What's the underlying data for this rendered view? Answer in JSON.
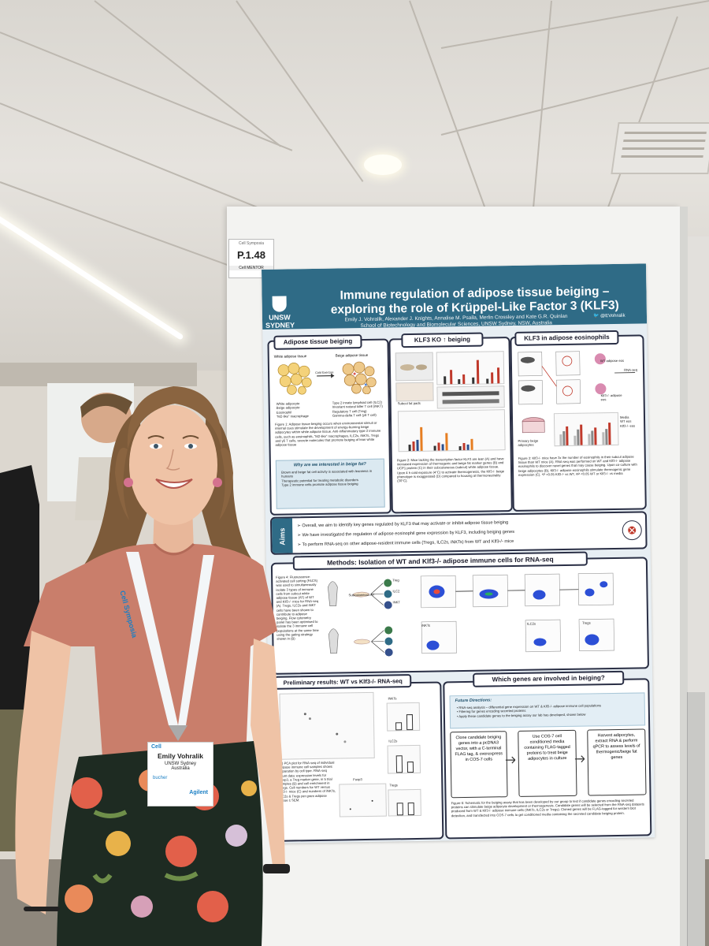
{
  "scene": {
    "poster_number": "P.1.48",
    "poster_tag_sponsor": "Cell MENTOR"
  },
  "poster": {
    "institution_logo_text": "UNSW SYDNEY",
    "title_line1": "Immune regulation of adipose tissue beiging –",
    "title_line2": "exploring the role of Krüppel-Like Factor 3 (KLF3)",
    "authors": "Emily J. Vohralik, Alexander J. Knights, Annalise M. Psaila, Merlin Crossley and Kate G.R. Quinlan",
    "affiliation": "School of Biotechnology and Biomolecular Sciences, UNSW Sydney, NSW, Australia",
    "twitter": "@EVohralik",
    "panel1": {
      "title": "Adipose tissue beiging",
      "label_white": "White adipose tissue",
      "label_beige": "Beige adipose tissue",
      "arrow_label": "Cold Exercise",
      "legend": [
        "White adipocyte",
        "Beige adipocyte",
        "Eosinophil",
        "\"M2-like\" macrophage",
        "Type 2 innate lymphoid cell (ILC2)",
        "Invariant natural killer T cell (iNKT)",
        "Regulatory T cell (Treg)",
        "Gamma-delta T cell (γδ T cell)"
      ],
      "caption": "Figure 1: Adipose tissue beiging occurs when environmental stimuli or internal cues stimulate the development of energy-burning beige adipocytes within white adipose tissue. Anti-inflammatory type 2 immune cells, such as eosinophils, \"M2-like\" macrophages, ILC2s, iNKTs, Tregs and γδ T cells, secrete molecules that promote beiging of lean white adipose tissue",
      "why_title": "Why are we interested in beige fat?",
      "why_items": [
        "Brown and beige fat cell activity is associated with leanness in humans",
        "Therapeutic potential for treating metabolic disorders",
        "Type 2 immune cells promote adipose tissue beiging"
      ]
    },
    "panel2": {
      "title": "KLF3 KO ↑ beiging",
      "caption": "Figure 2: Mice lacking the transcription factor KLF3 are lean (A) and have increased expression of thermogenic and beige fat marker genes (B) and UCP1 protein (C) in their subcutaneous (subcut) white adipose tissue. Upon 4 h cold exposure (4°C) to activate thermogenesis, the Klf3-/- beige phenotype is exaggerated (D) compared to housing at thermoneutrality (30°C).",
      "subcut_label": "Subcut fat pads"
    },
    "panel3": {
      "title": "KLF3 in adipose eosinophils",
      "labels": [
        "WT adipose eos",
        "Klf3-/- adipose eos",
        "RNA-seq",
        "Primary beige adipocytes",
        "Media",
        "WT eos",
        "Klf3-/- eos"
      ],
      "caption": "Figure 3: Klf3-/- mice have 3x the number of eosinophils in their subcut adipose tissue than WT mice (A). RNA-seq was performed on WT and Klf3-/- adipose eosinophils to discover novel genes that may cause beiging. Upon co-culture with beige adipocytes (B), Klf3-/- adipose eosinophils stimulate thermogenic gene expression (C). *P <0.05 Klf3-/- vs WT, #P <0.05 WT or Klf3-/- vs media"
    },
    "aims": {
      "label": "Aims",
      "items": [
        "Overall, we aim to identify key genes regulated by KLF3 that may activate or inhibit adipose tissue beiging",
        "We have investigated the regulation of adipose eosinophil gene expression by KLF3, including beiging genes",
        "To perform RNA-seq on other adipose-resident immune cells (Tregs, ILC2s, iNKTs) from WT and Klf3-/- mice"
      ]
    },
    "methods": {
      "title": "Methods: Isolation of WT and Klf3-/- adipose immune cells for RNA-seq",
      "caption": "Figure 4: Fluorescence-activated cell sorting (FACS) was used to simultaneously isolate 3 types of immune cells from subcut white adipose tissue (AT) of WT and Klf3-/- mice for RNA-seq (A). Tregs, ILC2s and iNKT cells have been shown to contribute to adipose beiging. Flow cytometry panel has been optimised to isolate the 3 immune cell populations at the same time using the gating strategy shown in (B)",
      "cell_types": [
        "Treg",
        "ILC2",
        "iNKT"
      ],
      "tissue_label": "Subcutaneous AT",
      "gate_labels": [
        "Tregs",
        "ILC2s",
        "iNKTs"
      ]
    },
    "prelim": {
      "title": "Preliminary results: WT vs Klf3-/- RNA-seq",
      "gene_labels": [
        "iNKTs",
        "ILC2s",
        "Foxp3",
        "Tregs"
      ],
      "caption": "(A) PCA plot for RNA-seq of individual adipose immune cell samples shows separation by cell type. RNA-seq count data: expression levels for Foxp3, a Treg marker gene, in 5 trial samples (B) and cell enrichment in Tregs. Cell numbers for WT versus Klf3-/- mice (C) and numbers of iNKTs, ILC2s & Tregs per gram adipose tissue ± SEM."
    },
    "genes": {
      "title": "Which genes are involved in beiging?",
      "future_title": "Future Directions:",
      "future_items": [
        "RNA-seq analysis – differential gene expression on WT & Klf3-/- adipose immune cell populations",
        "Filtering for genes encoding secreted proteins",
        "Apply these candidate genes to the beiging assay our lab has developed, shown below"
      ],
      "step1": "Clone candidate beiging genes into a pcDNA3 vector, with a C-terminal FLAG tag, & overexpress in COS-7 cells",
      "step2": "Use COS-7 cell conditioned media containing FLAG-tagged proteins to treat beige adipocytes in culture",
      "step3": "Harvest adipocytes, extract RNA & perform qPCR to assess levels of thermogenic/beige fat genes",
      "caption": "Figure 6: Schematic for the beiging assay that has been developed by our group to test if candidate genes encoding secreted proteins can stimulate beige adipocyte development or thermogenesis. Candidate genes will be selected from the RNA-seq datasets produced from WT & Klf3-/- adipose immune cells (iNKTs, ILC2s or Tregs). Cloned genes will be FLAG-tagged for western blot detection, and transfected into COS-7 cells to get conditioned media containing the secreted candidate beiging protein."
    }
  },
  "lanyard_text": "Cell Symposia",
  "badge": {
    "header": "Cell",
    "name": "Emily Vohralik",
    "org": "UNSW Sydney",
    "country": "Australia",
    "sponsor1": "bucher",
    "sponsor2": "Agilent"
  },
  "colors": {
    "poster_header": "#2f6b86",
    "panel_border": "#2a2f45",
    "shirt": "#c97e6b",
    "hair": "#8a6440",
    "pants_bg": "#1e2b22"
  }
}
